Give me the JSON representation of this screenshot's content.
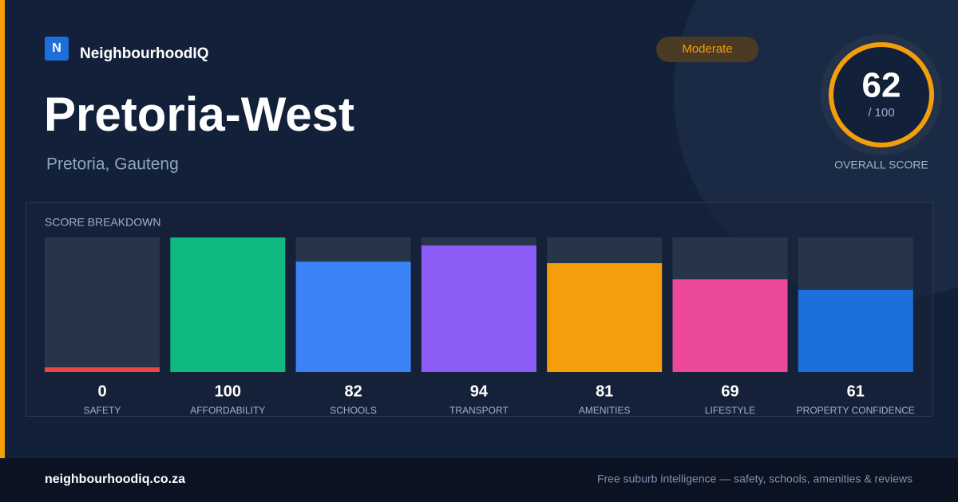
{
  "brand": {
    "logo": "N",
    "name": "NeighbourhoodIQ"
  },
  "title": "Pretoria-West",
  "subtitle": "Pretoria, Gauteng",
  "badge": "Moderate",
  "score": {
    "value": 62,
    "scale": "/ 100",
    "label": "OVERALL SCORE"
  },
  "chart_data": {
    "type": "bar",
    "title": "SCORE BREAKDOWN",
    "categories": [
      "SAFETY",
      "AFFORDABILITY",
      "SCHOOLS",
      "TRANSPORT",
      "AMENITIES",
      "LIFESTYLE",
      "PROPERTY CONFIDENCE"
    ],
    "values": [
      0,
      100,
      82,
      94,
      81,
      69,
      61
    ],
    "colors": [
      "#ef4444",
      "#10b981",
      "#3b82f6",
      "#8b5cf6",
      "#f59e0b",
      "#ec4899",
      "#1d6fdc"
    ],
    "ylim": [
      0,
      100
    ]
  },
  "footer": {
    "site": "neighbourhoodiq.co.za",
    "tagline": "Free suburb intelligence — safety, schools, amenities & reviews"
  }
}
